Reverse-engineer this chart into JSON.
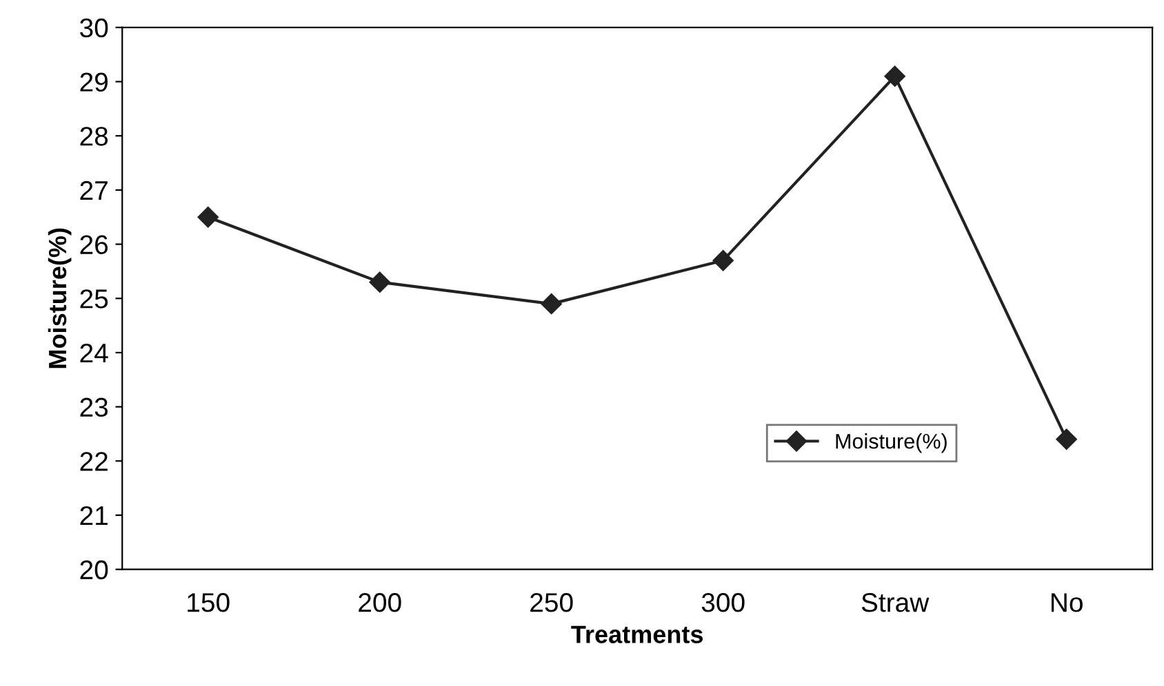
{
  "chart_data": {
    "type": "line",
    "xlabel": "Treatments",
    "ylabel": "Moisture(%)",
    "categories": [
      "150",
      "200",
      "250",
      "300",
      "Straw",
      "No"
    ],
    "series": [
      {
        "name": "Moisture(%)",
        "color": "#222222",
        "values": [
          26.5,
          25.3,
          24.9,
          25.7,
          29.1,
          22.4
        ]
      }
    ],
    "ylim": [
      20,
      30
    ],
    "yticks": [
      20,
      21,
      22,
      23,
      24,
      25,
      26,
      27,
      28,
      29,
      30
    ],
    "grid": false,
    "legend": "bottom right",
    "marker": "diamond",
    "line_style": "solid"
  }
}
